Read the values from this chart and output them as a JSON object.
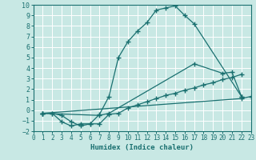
{
  "xlabel": "Humidex (Indice chaleur)",
  "xlim": [
    0,
    23
  ],
  "ylim": [
    -2,
    10
  ],
  "xticks": [
    0,
    1,
    2,
    3,
    4,
    5,
    6,
    7,
    8,
    9,
    10,
    11,
    12,
    13,
    14,
    15,
    16,
    17,
    18,
    19,
    20,
    21,
    22,
    23
  ],
  "yticks": [
    -2,
    -1,
    0,
    1,
    2,
    3,
    4,
    5,
    6,
    7,
    8,
    9,
    10
  ],
  "bg_color": "#c8e8e4",
  "line_color": "#1a7070",
  "grid_color": "#ffffff",
  "lines": [
    {
      "x": [
        1,
        2,
        3,
        4,
        5,
        6,
        7,
        8,
        9,
        10,
        11,
        12,
        13,
        14,
        15,
        16,
        17,
        22
      ],
      "y": [
        -0.3,
        -0.3,
        -1.1,
        -1.5,
        -1.3,
        -1.3,
        -0.4,
        1.3,
        5.0,
        6.5,
        7.5,
        8.3,
        9.5,
        9.7,
        9.9,
        9.0,
        8.2,
        1.3
      ]
    },
    {
      "x": [
        1,
        2,
        3,
        4,
        5,
        6,
        7,
        8,
        9,
        10,
        11,
        12,
        13,
        14,
        15,
        16,
        17,
        18,
        19,
        20,
        21,
        22
      ],
      "y": [
        -0.3,
        -0.3,
        -0.5,
        -1.1,
        -1.5,
        -1.3,
        -1.3,
        -0.4,
        -0.3,
        0.2,
        0.5,
        0.8,
        1.1,
        1.4,
        1.6,
        1.9,
        2.1,
        2.4,
        2.6,
        2.9,
        3.1,
        3.4
      ]
    },
    {
      "x": [
        1,
        7,
        8,
        17,
        20,
        21,
        22
      ],
      "y": [
        -0.3,
        -0.5,
        -0.3,
        4.4,
        3.5,
        3.6,
        1.3
      ]
    },
    {
      "x": [
        1,
        22,
        23
      ],
      "y": [
        -0.3,
        1.1,
        1.3
      ]
    }
  ]
}
